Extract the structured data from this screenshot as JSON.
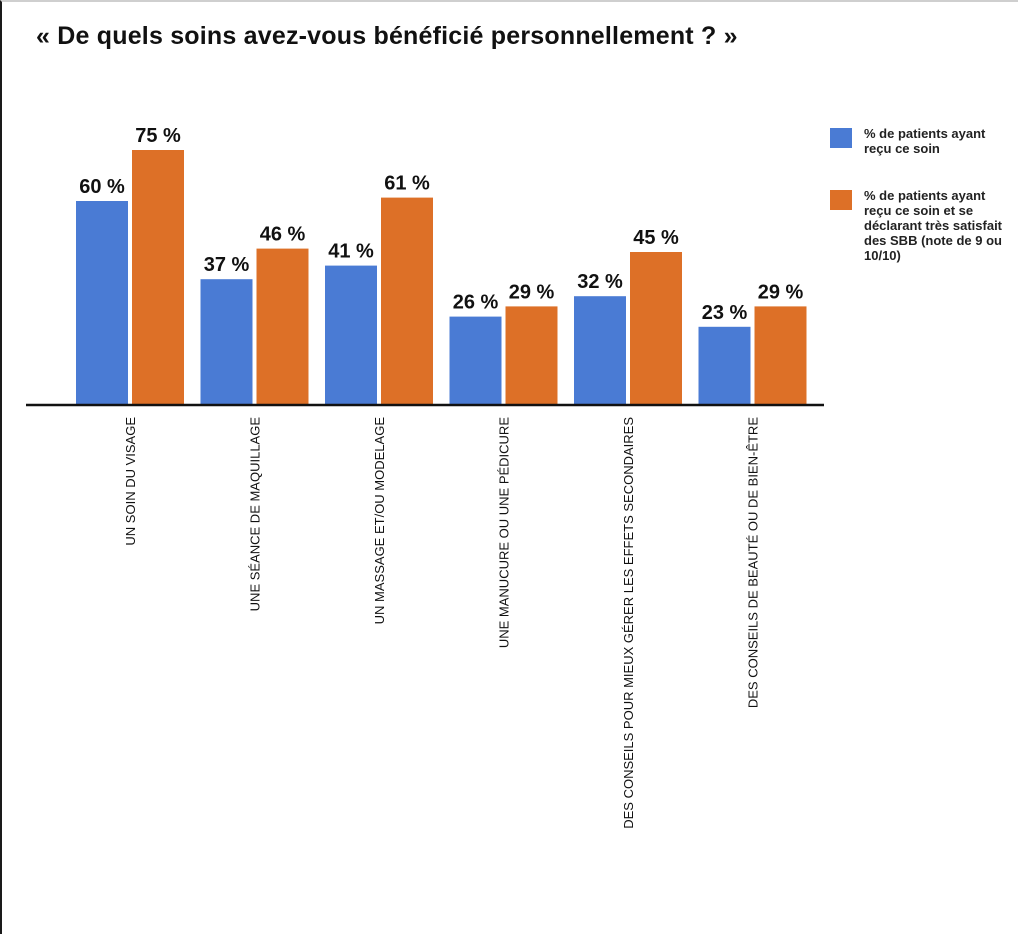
{
  "chart_data": {
    "type": "bar",
    "title": "« De quels soins avez-vous bénéficié personnellement ? »",
    "categories": [
      "UN SOIN DU VISAGE",
      "UNE SÉANCE DE MAQUILLAGE",
      "UN MASSAGE ET/OU MODELAGE",
      "UNE MANUCURE OU UNE PÉDICURE",
      "DES CONSEILS POUR MIEUX GÉRER LES EFFETS SECONDAIRES",
      "DES CONSEILS DE BEAUTÉ OU DE BIEN-ÊTRE"
    ],
    "series": [
      {
        "name": "% de patients ayant reçu ce soin",
        "color": "#4a7bd4",
        "values": [
          60,
          37,
          41,
          26,
          32,
          23
        ],
        "labels": [
          "60 %",
          "37 %",
          "41 %",
          "26 %",
          "32 %",
          "23 %"
        ]
      },
      {
        "name": "% de patients ayant reçu ce soin et se déclarant très satisfait des SBB (note de 9 ou 10/10)",
        "color": "#dd7027",
        "values": [
          75,
          46,
          61,
          29,
          45,
          29
        ],
        "labels": [
          "75 %",
          "46 %",
          "61 %",
          "29 %",
          "45 %",
          "29 %"
        ]
      }
    ],
    "xlabel": "",
    "ylabel": "",
    "ylim": [
      0,
      75
    ],
    "grid": false,
    "legend_position": "right"
  }
}
